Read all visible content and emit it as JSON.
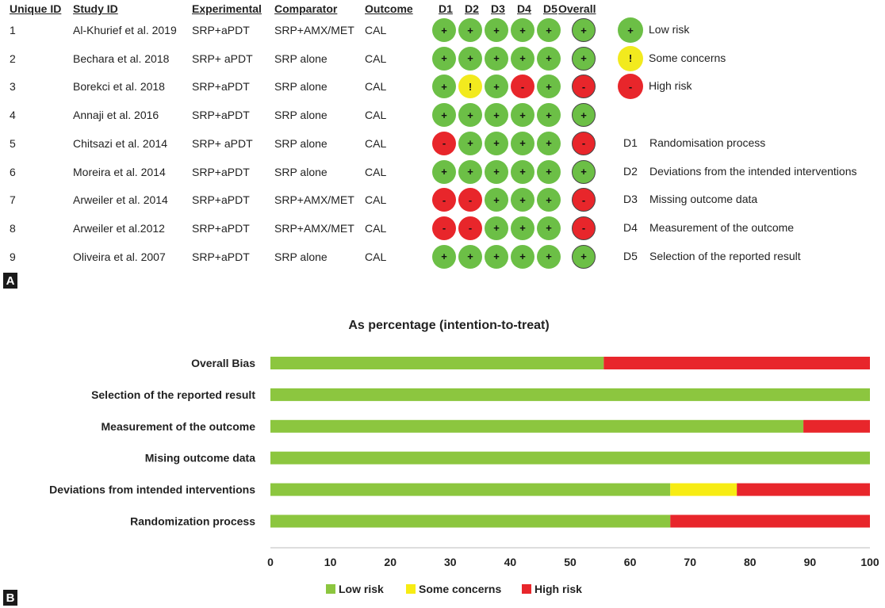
{
  "panel_a": {
    "tag": "A",
    "headers": {
      "id": "Unique ID",
      "study": "Study ID",
      "experimental": "Experimental",
      "comparator": "Comparator",
      "outcome": "Outcome",
      "domains": [
        "D1",
        "D2",
        "D3",
        "D4",
        "D5"
      ],
      "overall": "Overall"
    },
    "rows": [
      {
        "id": "1",
        "study": "Al-Khurief et al. 2019",
        "experimental": "SRP+aPDT",
        "comparator": "SRP+AMX/MET",
        "outcome": "CAL",
        "d": [
          "+",
          "+",
          "+",
          "+",
          "+"
        ],
        "overall": "+"
      },
      {
        "id": "2",
        "study": "Bechara et al. 2018",
        "experimental": "SRP+ aPDT",
        "comparator": "SRP alone",
        "outcome": "CAL",
        "d": [
          "+",
          "+",
          "+",
          "+",
          "+"
        ],
        "overall": "+"
      },
      {
        "id": "3",
        "study": "Borekci et al. 2018",
        "experimental": "SRP+aPDT",
        "comparator": "SRP alone",
        "outcome": "CAL",
        "d": [
          "+",
          "!",
          "+",
          "-",
          "+"
        ],
        "overall": "-"
      },
      {
        "id": "4",
        "study": "Annaji et al. 2016",
        "experimental": "SRP+aPDT",
        "comparator": "SRP alone",
        "outcome": "CAL",
        "d": [
          "+",
          "+",
          "+",
          "+",
          "+"
        ],
        "overall": "+"
      },
      {
        "id": "5",
        "study": "Chitsazi et al. 2014",
        "experimental": "SRP+ aPDT",
        "comparator": "SRP alone",
        "outcome": "CAL",
        "d": [
          "-",
          "+",
          "+",
          "+",
          "+"
        ],
        "overall": "-"
      },
      {
        "id": "6",
        "study": "Moreira et al. 2014",
        "experimental": "SRP+aPDT",
        "comparator": "SRP alone",
        "outcome": "CAL",
        "d": [
          "+",
          "+",
          "+",
          "+",
          "+"
        ],
        "overall": "+"
      },
      {
        "id": "7",
        "study": "Arweiler et al. 2014",
        "experimental": "SRP+aPDT",
        "comparator": "SRP+AMX/MET",
        "outcome": "CAL",
        "d": [
          "-",
          "-",
          "+",
          "+",
          "+"
        ],
        "overall": "-"
      },
      {
        "id": "8",
        "study": "Arweiler et al.2012",
        "experimental": "SRP+aPDT",
        "comparator": "SRP+AMX/MET",
        "outcome": "CAL",
        "d": [
          "-",
          "-",
          "+",
          "+",
          "+"
        ],
        "overall": "-"
      },
      {
        "id": "9",
        "study": "Oliveira et al. 2007",
        "experimental": "SRP+aPDT",
        "comparator": "SRP alone",
        "outcome": "CAL",
        "d": [
          "+",
          "+",
          "+",
          "+",
          "+"
        ],
        "overall": "+"
      }
    ],
    "judgement_legend": [
      {
        "symbol": "+",
        "label": "Low risk",
        "color": "#6cbf46"
      },
      {
        "symbol": "!",
        "label": "Some concerns",
        "color": "#f2ea1e"
      },
      {
        "symbol": "-",
        "label": "High risk",
        "color": "#e8262b"
      }
    ],
    "domain_legend": [
      {
        "code": "D1",
        "label": "Randomisation process"
      },
      {
        "code": "D2",
        "label": "Deviations from the intended interventions"
      },
      {
        "code": "D3",
        "label": "Missing outcome data"
      },
      {
        "code": "D4",
        "label": "Measurement of the outcome"
      },
      {
        "code": "D5",
        "label": "Selection of the reported result"
      }
    ]
  },
  "chart_data": {
    "type": "bar",
    "stacked": true,
    "orientation": "horizontal",
    "title": "As percentage (intention-to-treat)",
    "tag": "B",
    "categories": [
      "Overall Bias",
      "Selection of the reported result",
      "Measurement of the outcome",
      "Mising outcome data",
      "Deviations from intended interventions",
      "Randomization process"
    ],
    "series": [
      {
        "name": "Low risk",
        "color": "#8cc63f",
        "values": [
          55.6,
          100,
          88.9,
          100,
          66.7,
          66.7
        ]
      },
      {
        "name": "Some concerns",
        "color": "#f7ec13",
        "values": [
          0,
          0,
          0,
          0,
          11.1,
          0
        ]
      },
      {
        "name": "High risk",
        "color": "#e8262b",
        "values": [
          44.4,
          0,
          11.1,
          0,
          22.2,
          33.3
        ]
      }
    ],
    "xlim": [
      0,
      100
    ],
    "xticks": [
      "0",
      "10",
      "20",
      "30",
      "40",
      "50",
      "60",
      "70",
      "80",
      "90",
      "100"
    ],
    "legend_position": "bottom"
  }
}
